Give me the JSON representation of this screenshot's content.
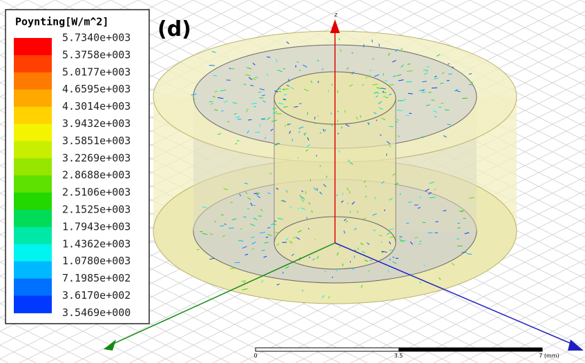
{
  "legend": {
    "title": "Poynting[W/m^2]",
    "labels": [
      "5.7340e+003",
      "5.3758e+003",
      "5.0177e+003",
      "4.6595e+003",
      "4.3014e+003",
      "3.9432e+003",
      "3.5851e+003",
      "3.2269e+003",
      "2.8688e+003",
      "2.5106e+003",
      "2.1525e+003",
      "1.7943e+003",
      "1.4362e+003",
      "1.0780e+003",
      "7.1985e+002",
      "3.6170e+002",
      "3.5469e+000"
    ],
    "colors": [
      "#ff0000",
      "#ff4000",
      "#ff7a00",
      "#ffa800",
      "#ffd200",
      "#f4f400",
      "#c8ef00",
      "#97e600",
      "#5ee000",
      "#22d800",
      "#00dc58",
      "#00e8a8",
      "#00f4f0",
      "#00b8ff",
      "#0070ff",
      "#0038ff",
      "#0000ff"
    ]
  },
  "panel_label": "(d)",
  "axis_label": "z",
  "scale_bar": {
    "labels": [
      "0",
      "3.5",
      "7 (mm)"
    ]
  }
}
